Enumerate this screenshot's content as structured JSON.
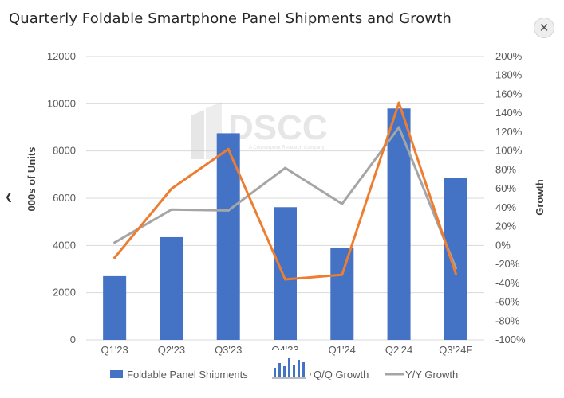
{
  "ui": {
    "close_icon": "close-icon",
    "prev_icon": "chevron-left-icon",
    "watermark": "DSCC",
    "watermark_sub": "A Counterpoint Research Company"
  },
  "chart_data": {
    "type": "bar",
    "title": "Quarterly Foldable Smartphone Panel Shipments and Growth",
    "categories": [
      "Q1'23",
      "Q2'23",
      "Q3'23",
      "Q4'23",
      "Q1'24",
      "Q2'24",
      "Q3'24F"
    ],
    "ylabel": "000s of Units",
    "y2label": "Growth",
    "ylim": [
      0,
      12000
    ],
    "y2lim": [
      -100,
      200
    ],
    "yticks": [
      0,
      2000,
      4000,
      6000,
      8000,
      10000,
      12000
    ],
    "y2ticks": [
      "-100%",
      "-80%",
      "-60%",
      "-40%",
      "-20%",
      "0%",
      "20%",
      "40%",
      "60%",
      "80%",
      "100%",
      "120%",
      "140%",
      "160%",
      "180%",
      "200%"
    ],
    "series": [
      {
        "name": "Foldable Panel Shipments",
        "kind": "bar",
        "axis": "left",
        "color": "#4472c4",
        "values": [
          2700,
          4350,
          8750,
          5620,
          3900,
          9800,
          6870
        ]
      },
      {
        "name": "Q/Q Growth",
        "kind": "line",
        "axis": "right",
        "color": "#ed7d31",
        "values": [
          -13,
          60,
          102,
          -36,
          -31,
          151,
          -30
        ]
      },
      {
        "name": "Y/Y Growth",
        "kind": "line",
        "axis": "right",
        "color": "#a5a5a5",
        "values": [
          3,
          38,
          37,
          82,
          44,
          125,
          -24
        ]
      }
    ],
    "legend": {
      "position": "bottom",
      "labels": [
        "Foldable Panel Shipments",
        "Q/Q Growth",
        "Y/Y Growth"
      ]
    },
    "grid": true
  }
}
